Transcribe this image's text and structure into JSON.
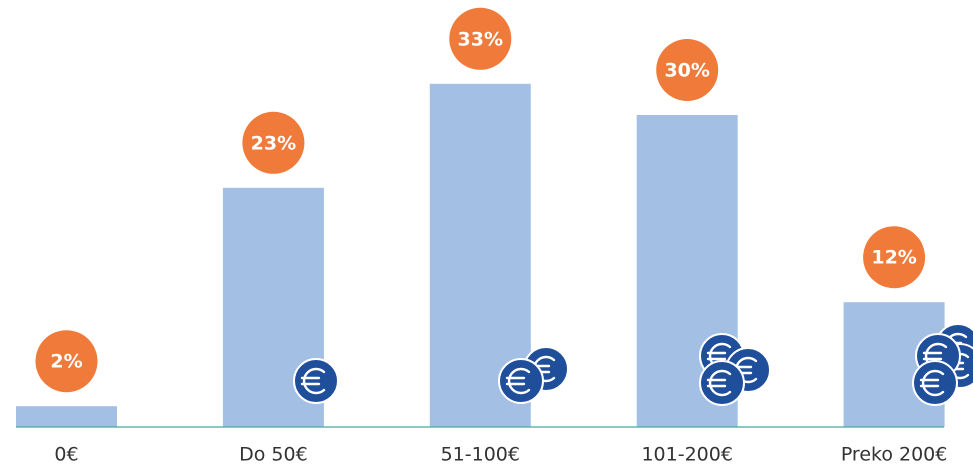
{
  "chart_data": {
    "type": "bar",
    "categories": [
      "0€",
      "Do 50€",
      "51-100€",
      "101-200€",
      "Preko 200€"
    ],
    "values": [
      2,
      23,
      33,
      30,
      12
    ],
    "value_labels": [
      "2%",
      "23%",
      "33%",
      "30%",
      "12%"
    ],
    "color": "#a3c0e4"
  }
}
